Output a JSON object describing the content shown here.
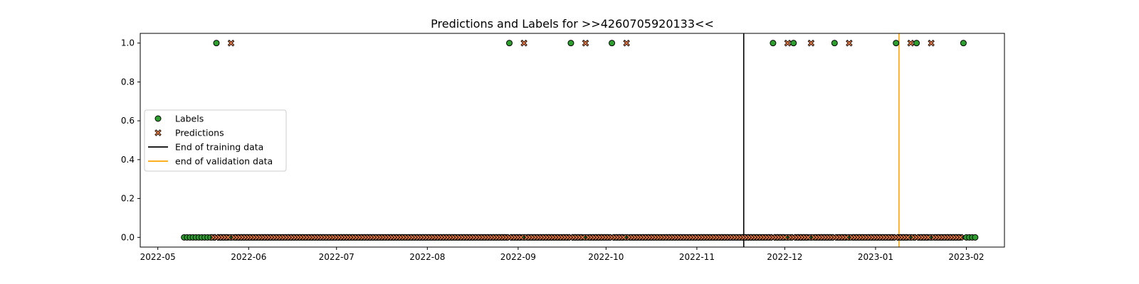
{
  "chart_data": {
    "type": "scatter",
    "title": "Predictions and Labels for >>4260705920133<<",
    "xlabel": "",
    "ylabel": "",
    "x_axis": {
      "type": "date",
      "range": [
        "2022-04-25",
        "2023-02-14"
      ],
      "ticks": [
        "2022-05-01",
        "2022-06-01",
        "2022-07-01",
        "2022-08-01",
        "2022-09-01",
        "2022-10-01",
        "2022-11-01",
        "2022-12-01",
        "2023-01-01",
        "2023-02-01"
      ],
      "tick_labels": [
        "2022-05",
        "2022-06",
        "2022-07",
        "2022-08",
        "2022-09",
        "2022-10",
        "2022-11",
        "2022-12",
        "2023-01",
        "2023-02"
      ]
    },
    "y_axis": {
      "range": [
        -0.05,
        1.05
      ],
      "ticks": [
        0.0,
        0.2,
        0.4,
        0.6,
        0.8,
        1.0
      ],
      "tick_labels": [
        "0.0",
        "0.2",
        "0.4",
        "0.6",
        "0.8",
        "1.0"
      ]
    },
    "grid": false,
    "legend_position": "center-left",
    "series": [
      {
        "name": "Labels",
        "marker": "circle",
        "color": "#2ca02c",
        "edge_color": "#000000",
        "date_range": [
          "2022-05-10",
          "2023-02-04"
        ],
        "default_value": 0.0,
        "positive_dates": [
          "2022-05-21",
          "2022-08-29",
          "2022-09-19",
          "2022-10-03",
          "2022-11-27",
          "2022-12-04",
          "2022-12-18",
          "2023-01-08",
          "2023-01-15",
          "2023-01-31"
        ]
      },
      {
        "name": "Predictions",
        "marker": "x",
        "color": "#f07a3e",
        "edge_color": "#000000",
        "date_range": [
          "2022-05-20",
          "2023-01-30"
        ],
        "default_value": 0.0,
        "positive_dates": [
          "2022-05-26",
          "2022-09-03",
          "2022-09-24",
          "2022-10-08",
          "2022-12-02",
          "2022-12-10",
          "2022-12-23",
          "2023-01-13",
          "2023-01-20"
        ]
      }
    ],
    "vertical_lines": [
      {
        "name": "End of training data",
        "date": "2022-11-17",
        "color": "#000000"
      },
      {
        "name": "end of validation data",
        "date": "2023-01-09",
        "color": "#ffa500"
      }
    ]
  }
}
